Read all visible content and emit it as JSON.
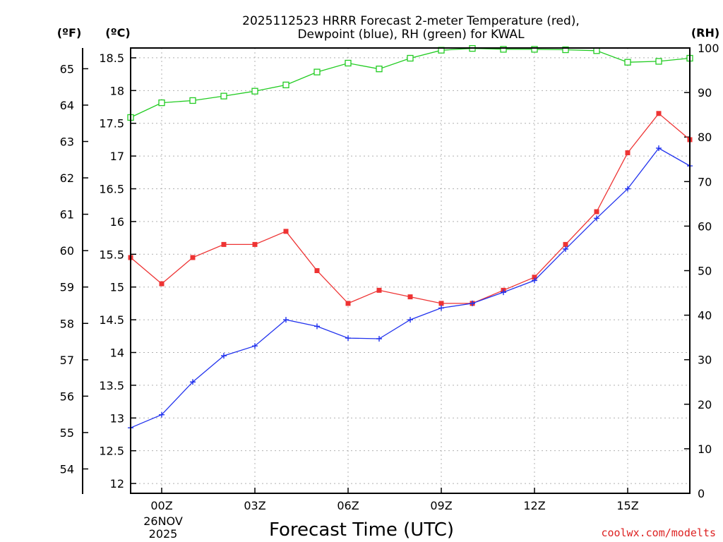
{
  "chart_data": {
    "type": "line",
    "title_line1": "2025112523 HRRR Forecast 2-meter Temperature (red),",
    "title_line2": "Dewpoint (blue), RH (green) for KWAL",
    "xlabel": "Forecast Time (UTC)",
    "left_axis_f_label": "(ºF)",
    "left_axis_c_label": "(ºC)",
    "right_axis_label": "(RH)",
    "date_line1": "26NOV",
    "date_line2": "2025",
    "credit": "coolwx.com/modelts",
    "x": [
      -1,
      0,
      1,
      2,
      3,
      4,
      5,
      6,
      7,
      8,
      9,
      10,
      11,
      12,
      13,
      14,
      15,
      16,
      17
    ],
    "xlim": [
      -1,
      17
    ],
    "x_ticks": [
      {
        "x": 0,
        "label": "00Z"
      },
      {
        "x": 3,
        "label": "03Z"
      },
      {
        "x": 6,
        "label": "06Z"
      },
      {
        "x": 9,
        "label": "09Z"
      },
      {
        "x": 12,
        "label": "12Z"
      },
      {
        "x": 15,
        "label": "15Z"
      }
    ],
    "y_c_lim": [
      11.85,
      18.65
    ],
    "y_c_ticks": [
      "12",
      "12.5",
      "13",
      "13.5",
      "14",
      "14.5",
      "15",
      "15.5",
      "16",
      "16.5",
      "17",
      "17.5",
      "18",
      "18.5"
    ],
    "y_f_ticks": [
      "54",
      "55",
      "56",
      "57",
      "58",
      "59",
      "60",
      "61",
      "62",
      "63",
      "64",
      "65"
    ],
    "y_rh_lim": [
      0,
      100
    ],
    "y_rh_ticks": [
      "0",
      "10",
      "20",
      "30",
      "40",
      "50",
      "60",
      "70",
      "80",
      "90",
      "100"
    ],
    "series": [
      {
        "name": "Temperature",
        "color": "#ee3333",
        "marker": "filled-square",
        "axis": "celsius",
        "values": [
          15.45,
          15.05,
          15.45,
          15.65,
          15.65,
          15.85,
          15.25,
          14.75,
          14.95,
          14.85,
          14.75,
          14.75,
          14.95,
          15.15,
          15.65,
          16.15,
          17.05,
          17.65,
          17.25
        ]
      },
      {
        "name": "Dewpoint",
        "color": "#2233ee",
        "marker": "plus",
        "axis": "celsius",
        "values": [
          12.85,
          13.05,
          13.55,
          13.95,
          14.1,
          14.5,
          14.4,
          14.22,
          14.21,
          14.5,
          14.68,
          14.75,
          14.92,
          15.1,
          15.58,
          16.05,
          16.5,
          17.12,
          16.85
        ]
      },
      {
        "name": "RH",
        "color": "#22cc22",
        "marker": "open-square",
        "axis": "rh",
        "values": [
          84.4,
          87.7,
          88.2,
          89.2,
          90.3,
          91.7,
          94.6,
          96.6,
          95.3,
          97.7,
          99.5,
          99.9,
          99.7,
          99.7,
          99.6,
          99.4,
          96.8,
          97.0,
          97.7
        ]
      }
    ]
  }
}
